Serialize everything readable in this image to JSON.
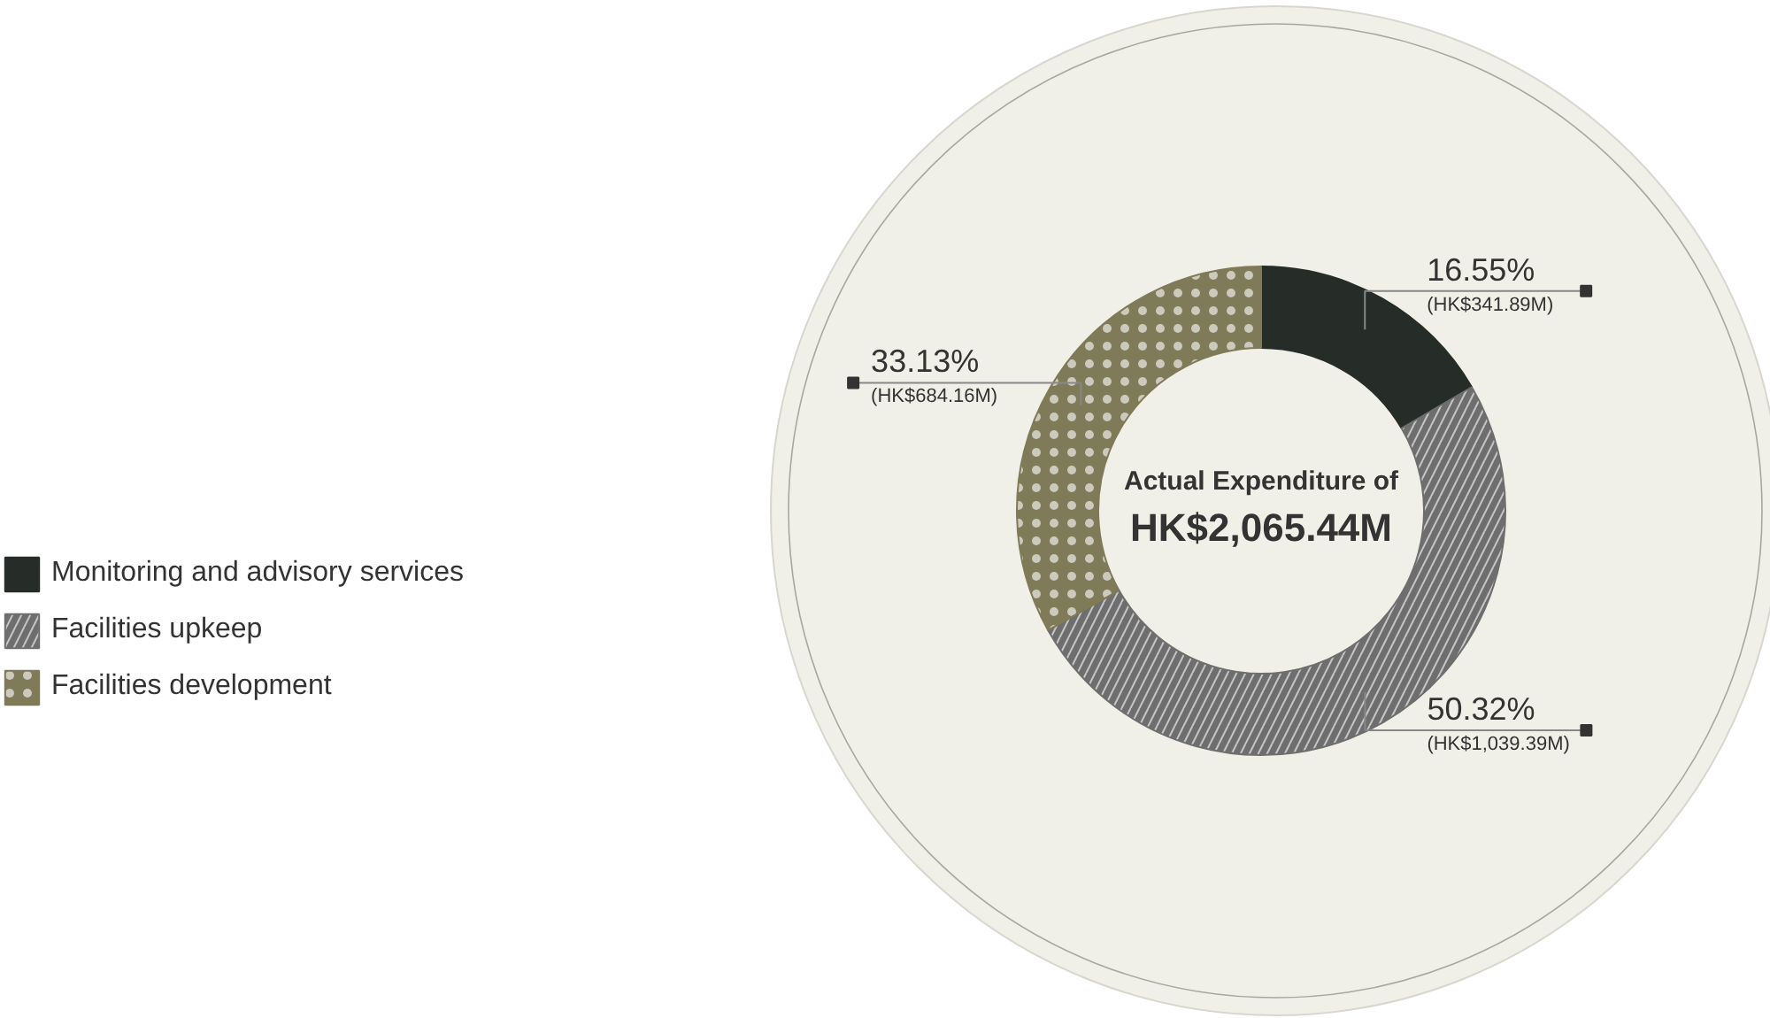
{
  "chart_data": {
    "type": "donut",
    "title": "Actual Expenditure of",
    "subtitle": "HK$2,065.44M",
    "categories": [
      "Monitoring and advisory services",
      "Facilities upkeep",
      "Facilities development"
    ],
    "values": [
      16.55,
      50.32,
      33.13
    ],
    "colors": [
      "#262d29",
      "#6e6e6e",
      "#7f7a57"
    ],
    "value_labels": [
      "16.55%",
      "50.32%",
      "33.13%"
    ],
    "annotations": [
      {
        "text": "(HK$341.89M)",
        "x": "Monitoring and advisory services"
      },
      {
        "text": "(HK$1,039.39M)",
        "x": "Facilities upkeep"
      },
      {
        "text": "(HK$684.16M)",
        "x": "Facilities development"
      }
    ],
    "legend": "left"
  }
}
